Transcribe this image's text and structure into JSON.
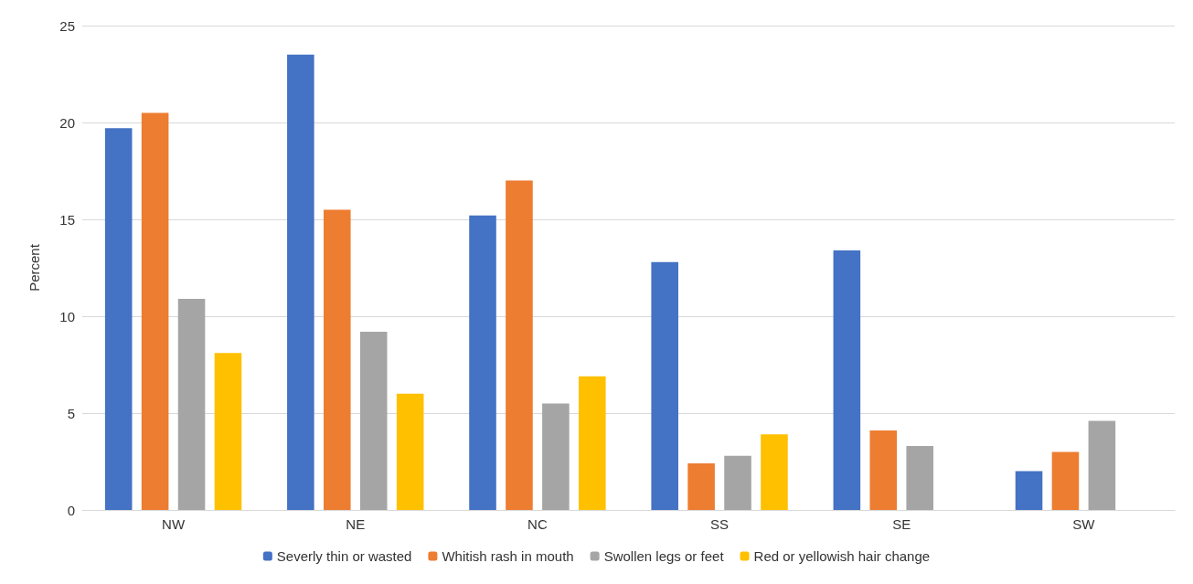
{
  "chart_data": {
    "type": "bar",
    "ylabel": "Percent",
    "categories": [
      "NW",
      "NE",
      "NC",
      "SS",
      "SE",
      "SW"
    ],
    "series": [
      {
        "name": "Severly thin or wasted",
        "color": "#4472c4",
        "values": [
          19.7,
          23.5,
          15.2,
          12.8,
          13.4,
          2.0
        ]
      },
      {
        "name": "Whitish rash in mouth",
        "color": "#ed7d31",
        "values": [
          20.5,
          15.5,
          17.0,
          2.4,
          4.1,
          3.0
        ]
      },
      {
        "name": "Swollen legs or feet",
        "color": "#a5a5a5",
        "values": [
          10.9,
          9.2,
          5.5,
          2.8,
          3.3,
          4.6
        ]
      },
      {
        "name": "Red or yellowish hair change",
        "color": "#ffc000",
        "values": [
          8.1,
          6.0,
          6.9,
          3.9,
          null,
          null
        ]
      }
    ],
    "ylim": [
      0,
      25
    ],
    "yticks": [
      0,
      5,
      10,
      15,
      20,
      25
    ],
    "grid": "y",
    "legend": "bottom"
  }
}
